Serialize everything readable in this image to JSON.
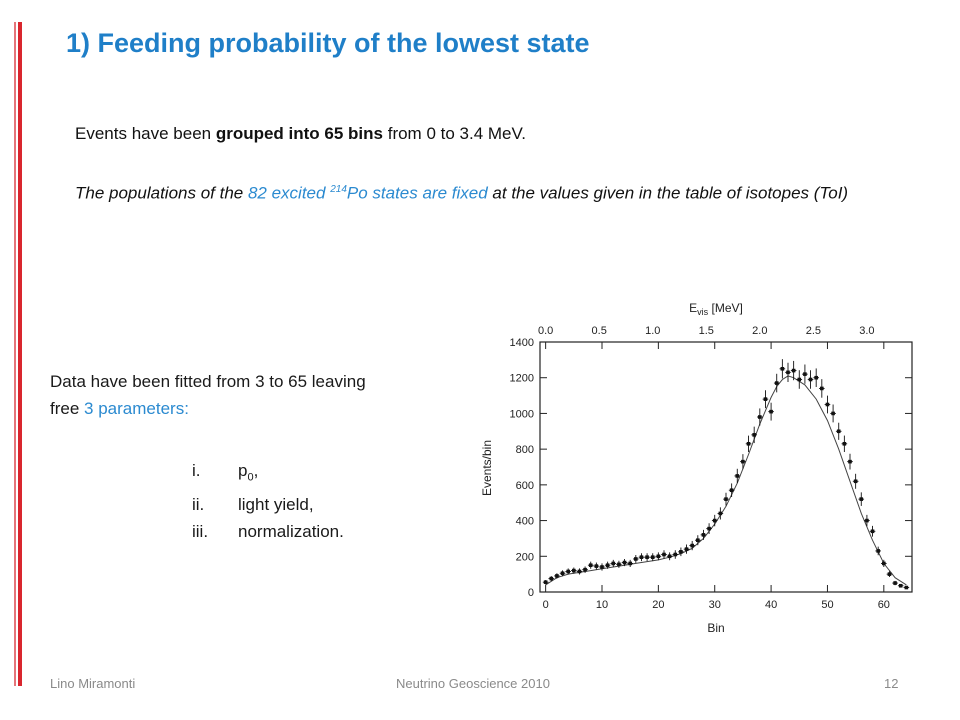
{
  "slide": {
    "title": "1) Feeding probability of the lowest state",
    "para1": {
      "pre": "Events have been ",
      "bold": "grouped into 65 bins",
      "post": " from 0 to 3.4 MeV."
    },
    "para2": {
      "pre": "The populations of the ",
      "accent": "82 excited ",
      "sup": "214",
      "accent2": "Po states are fixed",
      "post": " at the values given in the table of isotopes (ToI)"
    },
    "fit_text": {
      "line1": "Data have been fitted from 3 to 65 leaving",
      "line2_pre": "free ",
      "line2_accent": "3 parameters:"
    },
    "fit_params": [
      {
        "num": "i.",
        "label_main": "p",
        "label_sub": "0",
        "label_post": ","
      },
      {
        "num": "ii.",
        "label_main": "light yield,",
        "label_sub": "",
        "label_post": ""
      },
      {
        "num": "iii.",
        "label_main": "normalization.",
        "label_sub": "",
        "label_post": ""
      }
    ],
    "footer": {
      "author": "Lino Miramonti",
      "event": "Neutrino Geoscience 2010",
      "page": "12"
    },
    "colors": {
      "title": "#1f7fc8",
      "accent": "#2b8ad0",
      "bar_red": "#d9262e",
      "footer": "#8a8a8a"
    }
  },
  "chart_data": {
    "type": "scatter",
    "xlabel": "Bin",
    "ylabel": "Events/bin",
    "x2label_main": "E",
    "x2label_sub": "vis",
    "x2label_unit": " [MeV]",
    "xlim": [
      -1,
      65
    ],
    "ylim": [
      0,
      1400
    ],
    "xticks": [
      0,
      10,
      20,
      30,
      40,
      50,
      60
    ],
    "yticks": [
      0,
      200,
      400,
      600,
      800,
      1000,
      1200,
      1400
    ],
    "x2ticks": [
      {
        "label": "0.0",
        "bin": 0
      },
      {
        "label": "0.5",
        "bin": 9.5
      },
      {
        "label": "1.0",
        "bin": 19
      },
      {
        "label": "1.5",
        "bin": 28.5
      },
      {
        "label": "2.0",
        "bin": 38
      },
      {
        "label": "2.5",
        "bin": 47.5
      },
      {
        "label": "3.0",
        "bin": 57
      }
    ],
    "grid": false,
    "series": [
      {
        "kind": "points",
        "x": [
          0,
          1,
          2,
          3,
          4,
          5,
          6,
          7,
          8,
          9,
          10,
          11,
          12,
          13,
          14,
          15,
          16,
          17,
          18,
          19,
          20,
          21,
          22,
          23,
          24,
          25,
          26,
          27,
          28,
          29,
          30,
          31,
          32,
          33,
          34,
          35,
          36,
          37,
          38,
          39,
          40,
          41,
          42,
          43,
          44,
          45,
          46,
          47,
          48,
          49,
          50,
          51,
          52,
          53,
          54,
          55,
          56,
          57,
          58,
          59,
          60,
          61,
          62,
          63,
          64
        ],
        "y": [
          55,
          75,
          90,
          105,
          115,
          120,
          115,
          125,
          150,
          145,
          140,
          150,
          160,
          155,
          165,
          160,
          185,
          195,
          195,
          195,
          200,
          210,
          200,
          210,
          225,
          240,
          260,
          290,
          320,
          355,
          400,
          440,
          520,
          570,
          650,
          730,
          830,
          880,
          980,
          1080,
          1010,
          1170,
          1250,
          1230,
          1240,
          1190,
          1220,
          1190,
          1200,
          1140,
          1050,
          1000,
          900,
          830,
          730,
          620,
          520,
          400,
          340,
          230,
          160,
          100,
          50,
          35,
          25
        ],
        "err": [
          12,
          14,
          15,
          16,
          17,
          17,
          17,
          18,
          20,
          20,
          20,
          20,
          20,
          20,
          20,
          20,
          22,
          22,
          22,
          22,
          22,
          24,
          22,
          24,
          24,
          26,
          26,
          28,
          28,
          30,
          32,
          34,
          36,
          38,
          40,
          42,
          46,
          46,
          48,
          50,
          50,
          52,
          54,
          54,
          54,
          52,
          54,
          52,
          52,
          52,
          50,
          50,
          48,
          46,
          44,
          42,
          38,
          32,
          30,
          24,
          20,
          16,
          12,
          10,
          8
        ]
      },
      {
        "kind": "fit",
        "x": [
          0,
          2,
          4,
          6,
          8,
          10,
          12,
          14,
          16,
          18,
          20,
          22,
          24,
          26,
          28,
          30,
          32,
          34,
          36,
          38,
          40,
          41,
          42,
          43,
          44,
          46,
          48,
          50,
          52,
          54,
          56,
          58,
          60,
          62,
          64
        ],
        "y": [
          40,
          80,
          100,
          110,
          120,
          130,
          140,
          150,
          160,
          170,
          180,
          195,
          215,
          245,
          300,
          380,
          480,
          610,
          770,
          940,
          1090,
          1150,
          1190,
          1210,
          1200,
          1160,
          1080,
          960,
          800,
          620,
          440,
          290,
          160,
          80,
          40
        ]
      }
    ]
  }
}
